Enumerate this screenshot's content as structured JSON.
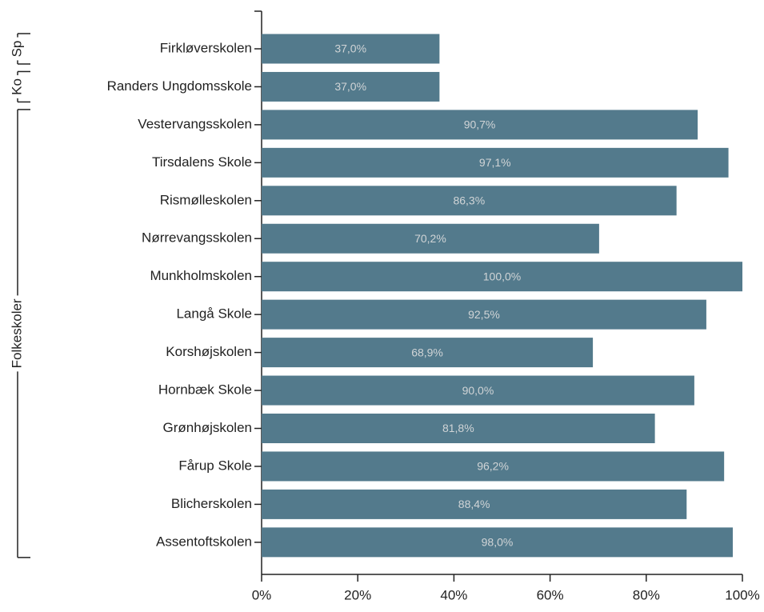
{
  "chart_data": {
    "type": "bar",
    "orientation": "horizontal",
    "categories": [
      "Firkløverskolen",
      "Randers Ungdomsskole",
      "Vestervangsskolen",
      "Tirsdalens Skole",
      "Rismølleskolen",
      "Nørrevangsskolen",
      "Munkholmskolen",
      "Langå Skole",
      "Korshøjskolen",
      "Hornbæk Skole",
      "Grønhøjskolen",
      "Fårup Skole",
      "Blicherskolen",
      "Assentoftskolen"
    ],
    "values": [
      37.0,
      37.0,
      90.7,
      97.1,
      86.3,
      70.2,
      100.0,
      92.5,
      68.9,
      90.0,
      81.8,
      96.2,
      88.4,
      98.0
    ],
    "value_labels": [
      "37,0%",
      "37,0%",
      "90,7%",
      "97,1%",
      "86,3%",
      "70,2%",
      "100,0%",
      "92,5%",
      "68,9%",
      "90,0%",
      "81,8%",
      "96,2%",
      "88,4%",
      "98,0%"
    ],
    "groups": [
      {
        "label": "Sp",
        "count": 1
      },
      {
        "label": "Ko",
        "count": 1
      },
      {
        "label": "Folkeskoler",
        "count": 12
      }
    ],
    "color": "#537a8c",
    "xlim": [
      0,
      100
    ],
    "xticks": [
      {
        "value": 0,
        "label": "0%"
      },
      {
        "value": 20,
        "label": "20%"
      },
      {
        "value": 40,
        "label": "40%"
      },
      {
        "value": 60,
        "label": "60%"
      },
      {
        "value": 80,
        "label": "80%"
      },
      {
        "value": 100,
        "label": "100%"
      }
    ],
    "grid": false
  }
}
